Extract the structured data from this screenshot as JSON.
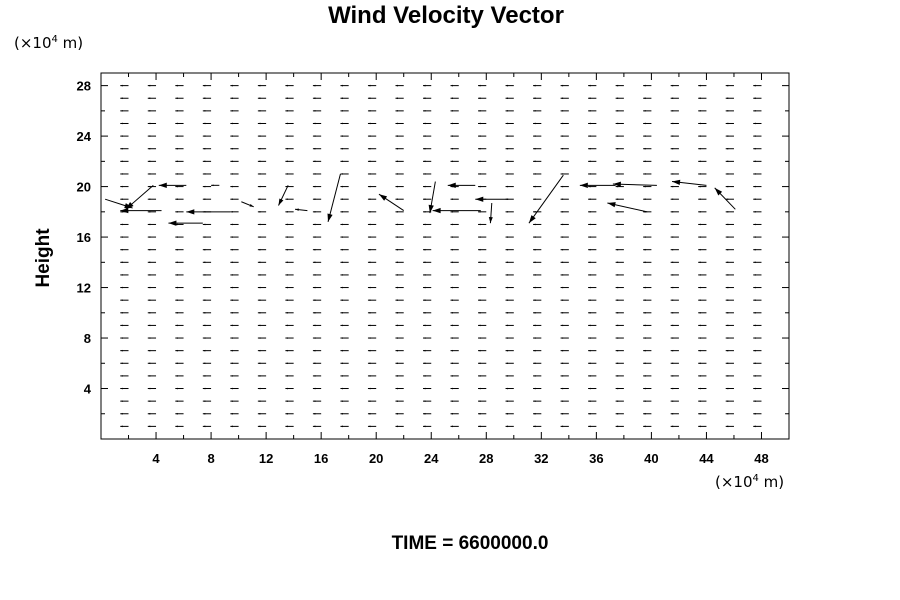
{
  "chart_data": {
    "type": "vector_field",
    "title": "Wind Velocity Vector",
    "xlabel": "",
    "ylabel": "Height",
    "x_unit": "(×10⁴ m)",
    "y_unit": "(×10⁴ m)",
    "unit_prefix": "(×10",
    "unit_exponent": "4",
    "unit_suffix": " m)",
    "xlim": [
      0,
      50
    ],
    "ylim": [
      0,
      29
    ],
    "xticks": [
      4,
      8,
      12,
      16,
      20,
      24,
      28,
      32,
      36,
      40,
      44,
      48
    ],
    "yticks": [
      4,
      8,
      12,
      16,
      20,
      24,
      28
    ],
    "xtick_labels": [
      "4",
      "8",
      "12",
      "16",
      "20",
      "24",
      "28",
      "32",
      "36",
      "40",
      "44",
      "48"
    ],
    "ytick_labels": [
      "4",
      "8",
      "12",
      "16",
      "20",
      "24",
      "28"
    ],
    "minor_x_step": 2,
    "minor_y_step": 2,
    "grid": false,
    "time_label": "TIME = 6600000.0",
    "grid_x": [
      2,
      4,
      6,
      8,
      10,
      12,
      14,
      16,
      18,
      20,
      22,
      24,
      26,
      28,
      30,
      32,
      34,
      36,
      38,
      40,
      42,
      44,
      46,
      48
    ],
    "grid_y": [
      1,
      2,
      3,
      4,
      5,
      6,
      7,
      8,
      9,
      10,
      11,
      12,
      13,
      14,
      15,
      16,
      17,
      18,
      19,
      20,
      21,
      22,
      23,
      24,
      25,
      26,
      27,
      28
    ],
    "vectors": [
      {
        "x": 0.3,
        "y": 19.0,
        "u": 2.0,
        "v": -0.7
      },
      {
        "x": 4.4,
        "y": 18.1,
        "u": -3.0,
        "v": 0.0
      },
      {
        "x": 6.2,
        "y": 20.1,
        "u": -2.0,
        "v": 0.0
      },
      {
        "x": 3.8,
        "y": 20.1,
        "u": -2.0,
        "v": -1.9
      },
      {
        "x": 9.4,
        "y": 18.0,
        "u": -3.2,
        "v": 0.0
      },
      {
        "x": 7.4,
        "y": 17.1,
        "u": -2.5,
        "v": 0.0
      },
      {
        "x": 8.6,
        "y": 20.1,
        "u": -0.6,
        "v": 0.0
      },
      {
        "x": 10.2,
        "y": 18.8,
        "u": 0.9,
        "v": -0.4
      },
      {
        "x": 13.6,
        "y": 20.1,
        "u": -0.7,
        "v": -1.6
      },
      {
        "x": 15.0,
        "y": 18.1,
        "u": -0.9,
        "v": 0.1
      },
      {
        "x": 17.4,
        "y": 21.0,
        "u": -0.9,
        "v": -3.8
      },
      {
        "x": 22.0,
        "y": 18.1,
        "u": -1.8,
        "v": 1.3
      },
      {
        "x": 24.3,
        "y": 20.4,
        "u": -0.4,
        "v": -2.5
      },
      {
        "x": 27.6,
        "y": 18.1,
        "u": -3.5,
        "v": 0.0
      },
      {
        "x": 27.2,
        "y": 20.1,
        "u": -2.0,
        "v": 0.0
      },
      {
        "x": 29.6,
        "y": 19.0,
        "u": -2.4,
        "v": 0.0
      },
      {
        "x": 28.4,
        "y": 18.7,
        "u": -0.1,
        "v": -1.6
      },
      {
        "x": 33.6,
        "y": 20.9,
        "u": -2.5,
        "v": -3.8
      },
      {
        "x": 37.4,
        "y": 20.1,
        "u": -2.6,
        "v": 0.0
      },
      {
        "x": 40.4,
        "y": 20.1,
        "u": -3.2,
        "v": 0.1
      },
      {
        "x": 44.0,
        "y": 20.1,
        "u": -2.5,
        "v": 0.3
      },
      {
        "x": 39.7,
        "y": 18.0,
        "u": -2.9,
        "v": 0.7
      },
      {
        "x": 46.1,
        "y": 18.2,
        "u": -1.5,
        "v": 1.7
      }
    ],
    "nominal_vector": {
      "u": -0.6,
      "v": 0.0
    }
  }
}
